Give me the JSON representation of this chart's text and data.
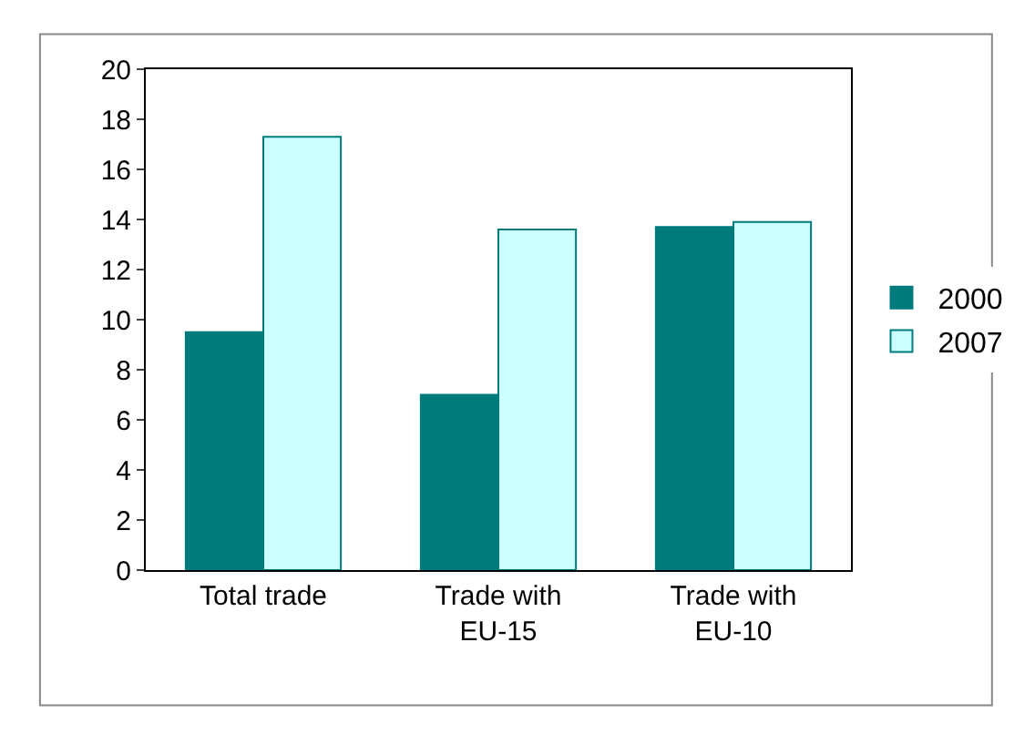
{
  "chart_data": {
    "type": "bar",
    "categories": [
      "Total trade",
      "Trade with EU-15",
      "Trade with EU-10"
    ],
    "series": [
      {
        "name": "2000",
        "color": "#007b7b",
        "values": [
          9.5,
          7.0,
          13.7
        ]
      },
      {
        "name": "2007",
        "color": "#ccffff",
        "values": [
          17.3,
          13.6,
          13.9
        ]
      }
    ],
    "ylim": [
      0,
      20
    ],
    "yticks": [
      0,
      2,
      4,
      6,
      8,
      10,
      12,
      14,
      16,
      18,
      20
    ],
    "grid": false,
    "legend": "right"
  }
}
